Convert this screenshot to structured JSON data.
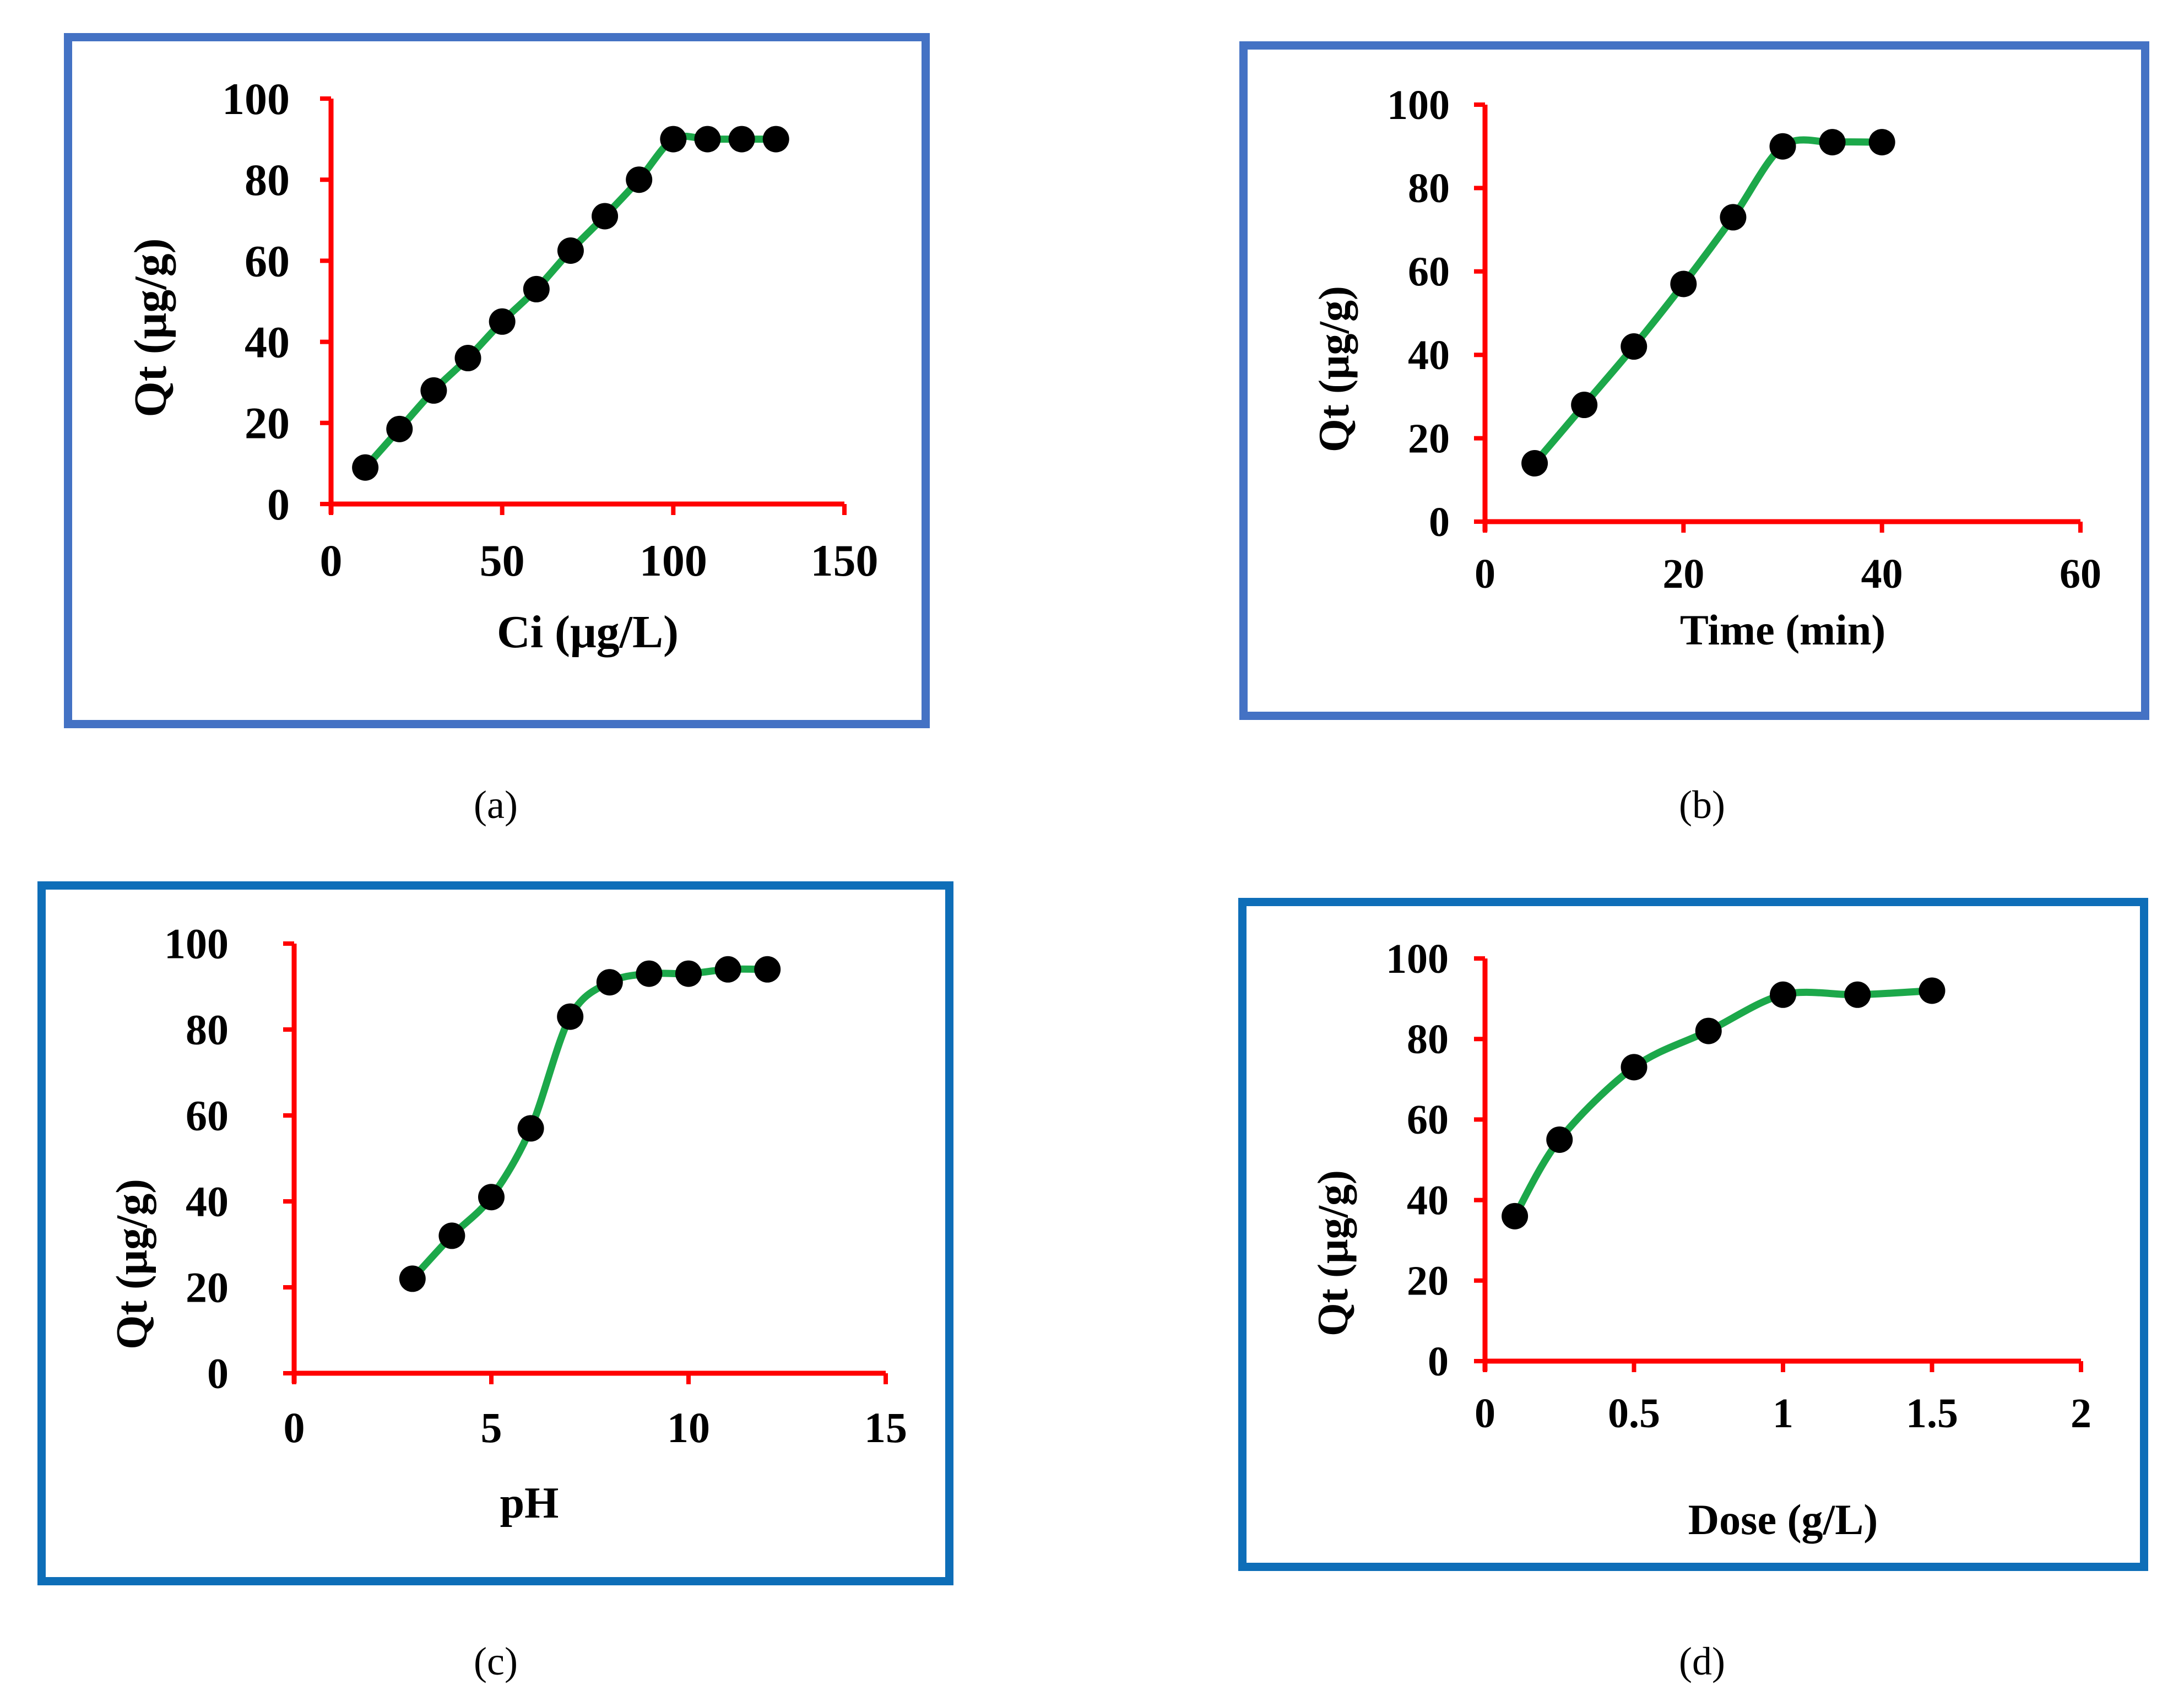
{
  "captions": {
    "a": "(a)",
    "b": "(b)",
    "c": "(c)",
    "d": "(d)"
  },
  "colors": {
    "axis": "#ff0000",
    "line": "#1ca84a",
    "point": "#000000"
  },
  "chart_data": [
    {
      "id": "a",
      "type": "line",
      "xlabel": "Ci (μg/L)",
      "ylabel": "Qt (μg/g)",
      "xlim": [
        0,
        150
      ],
      "ylim": [
        0,
        100
      ],
      "xticks": [
        0,
        50,
        100,
        150
      ],
      "yticks": [
        0,
        20,
        40,
        60,
        80,
        100
      ],
      "x": [
        10,
        20,
        30,
        40,
        50,
        60,
        70,
        80,
        90,
        100,
        110,
        120,
        130
      ],
      "y": [
        9,
        18.5,
        28,
        36,
        45,
        53,
        62.5,
        71,
        80,
        90,
        90,
        90,
        90
      ]
    },
    {
      "id": "b",
      "type": "line",
      "xlabel": "Time (min)",
      "ylabel": "Qt (μg/g)",
      "xlim": [
        0,
        60
      ],
      "ylim": [
        0,
        100
      ],
      "xticks": [
        0,
        20,
        40,
        60
      ],
      "yticks": [
        0,
        20,
        40,
        60,
        80,
        100
      ],
      "x": [
        5,
        10,
        15,
        20,
        25,
        30,
        35,
        40
      ],
      "y": [
        14,
        28,
        42,
        57,
        73,
        90,
        91,
        91
      ]
    },
    {
      "id": "c",
      "type": "line",
      "xlabel": "pH",
      "ylabel": "Qt (μg/g)",
      "xlim": [
        0,
        15
      ],
      "ylim": [
        0,
        100
      ],
      "xticks": [
        0,
        5,
        10,
        15
      ],
      "yticks": [
        0,
        20,
        40,
        60,
        80,
        100
      ],
      "x": [
        3,
        4,
        5,
        6,
        7,
        8,
        9,
        10,
        11,
        12
      ],
      "y": [
        22,
        32,
        41,
        57,
        83,
        91,
        93,
        93,
        94,
        94
      ]
    },
    {
      "id": "d",
      "type": "line",
      "xlabel": "Dose (g/L)",
      "ylabel": "Qt (μg/g)",
      "xlim": [
        0,
        2
      ],
      "ylim": [
        0,
        100
      ],
      "xticks": [
        0,
        0.5,
        1,
        1.5,
        2
      ],
      "xtick_labels": [
        "0",
        "0.5",
        "1",
        "1.5",
        "2"
      ],
      "yticks": [
        0,
        20,
        40,
        60,
        80,
        100
      ],
      "x": [
        0.1,
        0.25,
        0.5,
        0.75,
        1,
        1.25,
        1.5
      ],
      "y": [
        36,
        55,
        73,
        82,
        91,
        91,
        92
      ]
    }
  ]
}
